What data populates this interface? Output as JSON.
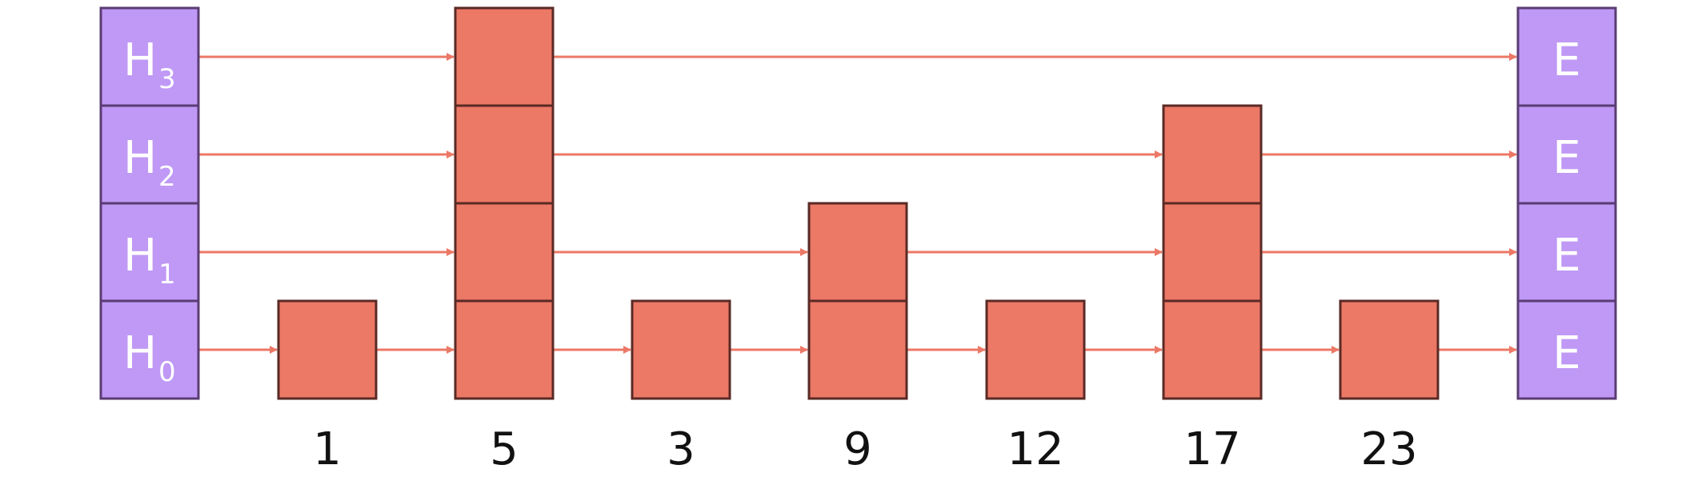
{
  "colors": {
    "sentinel_fill": "#BF99F5",
    "sentinel_stroke": "#5A3C73",
    "node_fill": "#EC7866",
    "node_stroke": "#5A2A25",
    "arrow": "#EC7866",
    "label": "#111111"
  },
  "head": {
    "letter": "H",
    "levels": [
      "3",
      "2",
      "1",
      "0"
    ]
  },
  "tail": {
    "labels": [
      "E",
      "E",
      "E",
      "E"
    ]
  },
  "nodes": [
    {
      "key": "1",
      "height": 1
    },
    {
      "key": "5",
      "height": 4
    },
    {
      "key": "3",
      "height": 1
    },
    {
      "key": "9",
      "height": 2
    },
    {
      "key": "12",
      "height": 1
    },
    {
      "key": "17",
      "height": 3
    },
    {
      "key": "23",
      "height": 1
    }
  ]
}
